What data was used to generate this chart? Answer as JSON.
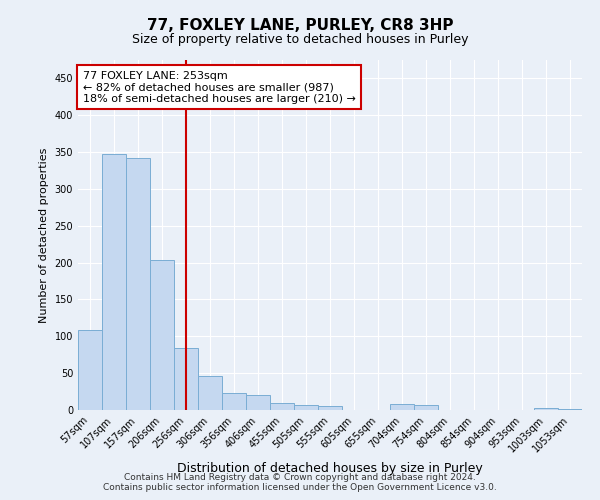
{
  "title": "77, FOXLEY LANE, PURLEY, CR8 3HP",
  "subtitle": "Size of property relative to detached houses in Purley",
  "xlabel": "Distribution of detached houses by size in Purley",
  "ylabel": "Number of detached properties",
  "categories": [
    "57sqm",
    "107sqm",
    "157sqm",
    "206sqm",
    "256sqm",
    "306sqm",
    "356sqm",
    "406sqm",
    "455sqm",
    "505sqm",
    "555sqm",
    "605sqm",
    "655sqm",
    "704sqm",
    "754sqm",
    "804sqm",
    "854sqm",
    "904sqm",
    "953sqm",
    "1003sqm",
    "1053sqm"
  ],
  "values": [
    109,
    348,
    342,
    204,
    84,
    46,
    23,
    20,
    10,
    7,
    6,
    0,
    0,
    8,
    7,
    0,
    0,
    0,
    0,
    3,
    2
  ],
  "bar_color": "#c5d8f0",
  "bar_edge_color": "#7aadd4",
  "vline_x_index": 4,
  "vline_color": "#cc0000",
  "annotation_text": "77 FOXLEY LANE: 253sqm\n← 82% of detached houses are smaller (987)\n18% of semi-detached houses are larger (210) →",
  "annotation_box_color": "#ffffff",
  "annotation_box_edge": "#cc0000",
  "ylim": [
    0,
    475
  ],
  "yticks": [
    0,
    50,
    100,
    150,
    200,
    250,
    300,
    350,
    400,
    450
  ],
  "footer_line1": "Contains HM Land Registry data © Crown copyright and database right 2024.",
  "footer_line2": "Contains public sector information licensed under the Open Government Licence v3.0.",
  "bg_color": "#eaf0f8",
  "grid_color": "#ffffff",
  "title_fontsize": 11,
  "subtitle_fontsize": 9,
  "ylabel_fontsize": 8,
  "xlabel_fontsize": 9,
  "tick_fontsize": 7,
  "footer_fontsize": 6.5
}
